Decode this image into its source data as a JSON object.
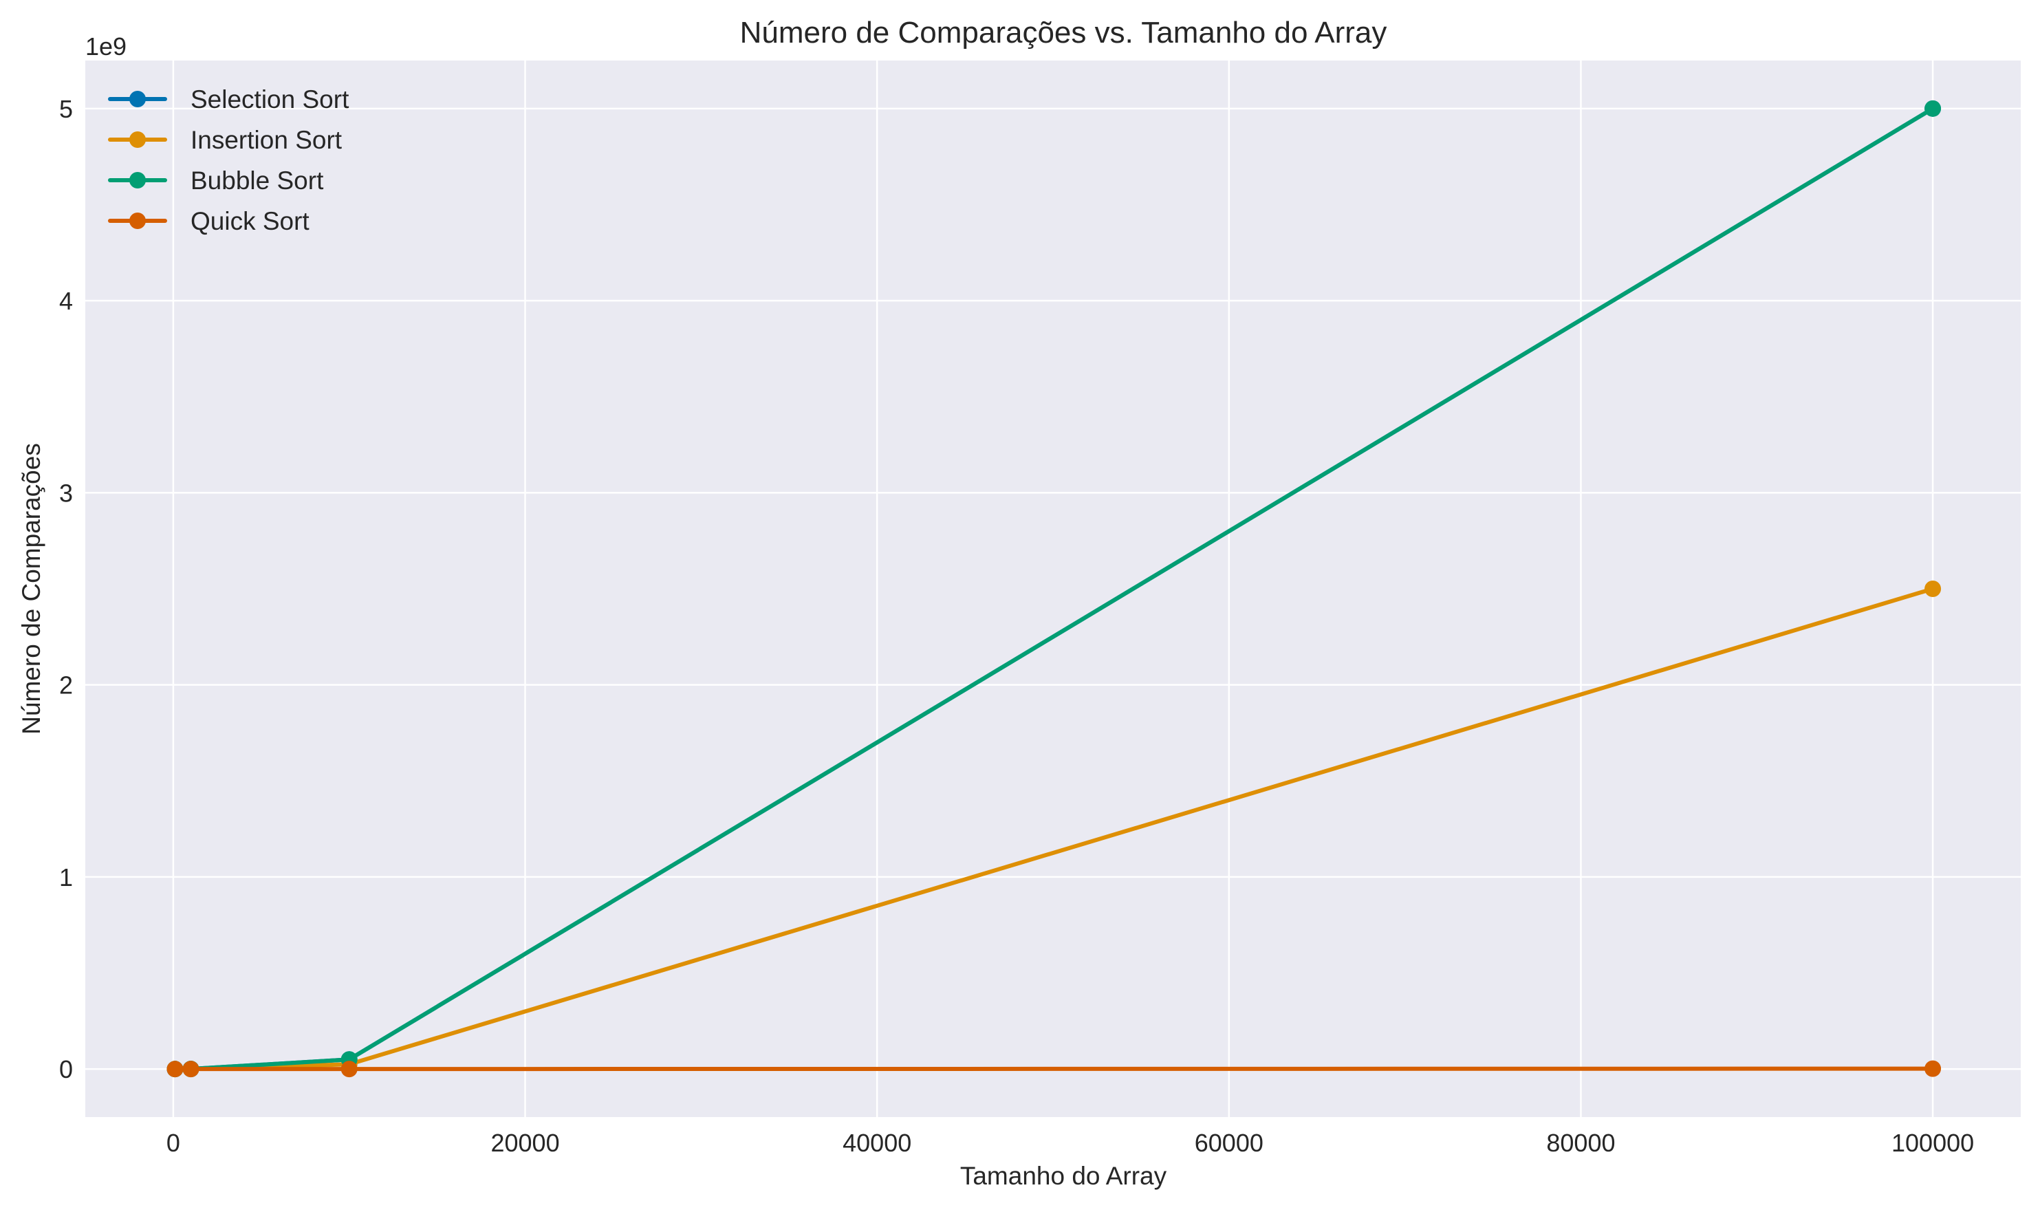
{
  "chart_data": {
    "type": "line",
    "title": "Número de Comparações vs. Tamanho do Array",
    "xlabel": "Tamanho do Array",
    "ylabel": "Número de Comparações",
    "y_offset_label": "1e9",
    "xlim": [
      -5000,
      105000
    ],
    "ylim": [
      -0.25,
      5.25
    ],
    "y_scale": 1000000000,
    "x_ticks": [
      0,
      20000,
      40000,
      60000,
      80000,
      100000
    ],
    "x_tick_labels": [
      "0",
      "20000",
      "40000",
      "60000",
      "80000",
      "100000"
    ],
    "y_ticks": [
      0,
      1,
      2,
      3,
      4,
      5
    ],
    "y_tick_labels": [
      "0",
      "1",
      "2",
      "3",
      "4",
      "5"
    ],
    "grid": true,
    "legend_position": "top-left",
    "x": [
      100,
      1000,
      10000,
      100000
    ],
    "series": [
      {
        "name": "Selection Sort",
        "color": "#0173b2",
        "values": [
          4950,
          499500,
          49995000,
          4999950000
        ]
      },
      {
        "name": "Insertion Sort",
        "color": "#de8f05",
        "values": [
          2500,
          250000,
          25000000,
          2500000000
        ]
      },
      {
        "name": "Bubble Sort",
        "color": "#029e73",
        "values": [
          4950,
          499500,
          49995000,
          4999950000
        ]
      },
      {
        "name": "Quick Sort",
        "color": "#d55e00",
        "values": [
          650,
          11000,
          160000,
          2000000
        ]
      }
    ]
  }
}
